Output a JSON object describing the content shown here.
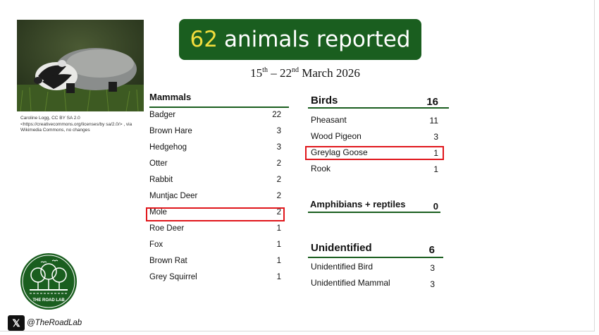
{
  "banner": {
    "count": "62",
    "label": "animals reported"
  },
  "dates": {
    "start_day": "15",
    "start_suffix": "th",
    "separator": " – ",
    "end_day": "22",
    "end_suffix": "nd",
    "month_year": " March 2026"
  },
  "photo_credit": "Caroline Logg, CC BY SA 2.0 <https://creativecommons.org/licenses/by sa/2.0/> , via Wikimedia Commons, no changes",
  "mammals": {
    "title": "Mammals",
    "items": [
      {
        "name": "Badger",
        "count": "22"
      },
      {
        "name": "Brown Hare",
        "count": "3"
      },
      {
        "name": "Hedgehog",
        "count": "3"
      },
      {
        "name": "Otter",
        "count": "2"
      },
      {
        "name": "Rabbit",
        "count": "2"
      },
      {
        "name": "Muntjac Deer",
        "count": "2"
      },
      {
        "name": "Mole",
        "count": "2"
      },
      {
        "name": "Roe Deer",
        "count": "1"
      },
      {
        "name": "Fox",
        "count": "1"
      },
      {
        "name": "Brown Rat",
        "count": "1"
      },
      {
        "name": "Grey Squirrel",
        "count": "1"
      }
    ]
  },
  "birds": {
    "title": "Birds",
    "total": "16",
    "items": [
      {
        "name": "Pheasant",
        "count": "11"
      },
      {
        "name": "Wood Pigeon",
        "count": "3"
      },
      {
        "name": "Greylag Goose",
        "count": "1"
      },
      {
        "name": "Rook",
        "count": "1"
      }
    ]
  },
  "amphibians": {
    "title": "Amphibians + reptiles",
    "total": "0"
  },
  "unidentified": {
    "title": "Unidentified",
    "total": "6",
    "items": [
      {
        "name": "Unidentified Bird",
        "count": "3"
      },
      {
        "name": "Unidentified Mammal",
        "count": "3"
      }
    ]
  },
  "logo": {
    "text": "THE ROAD LAB"
  },
  "social": {
    "icon": "x-logo-icon",
    "x_glyph": "𝕏",
    "handle": "@TheRoadLab"
  },
  "colors": {
    "brand_green": "#1a5e1f",
    "highlight_red": "#e0161b",
    "count_yellow": "#f2dd3c"
  }
}
